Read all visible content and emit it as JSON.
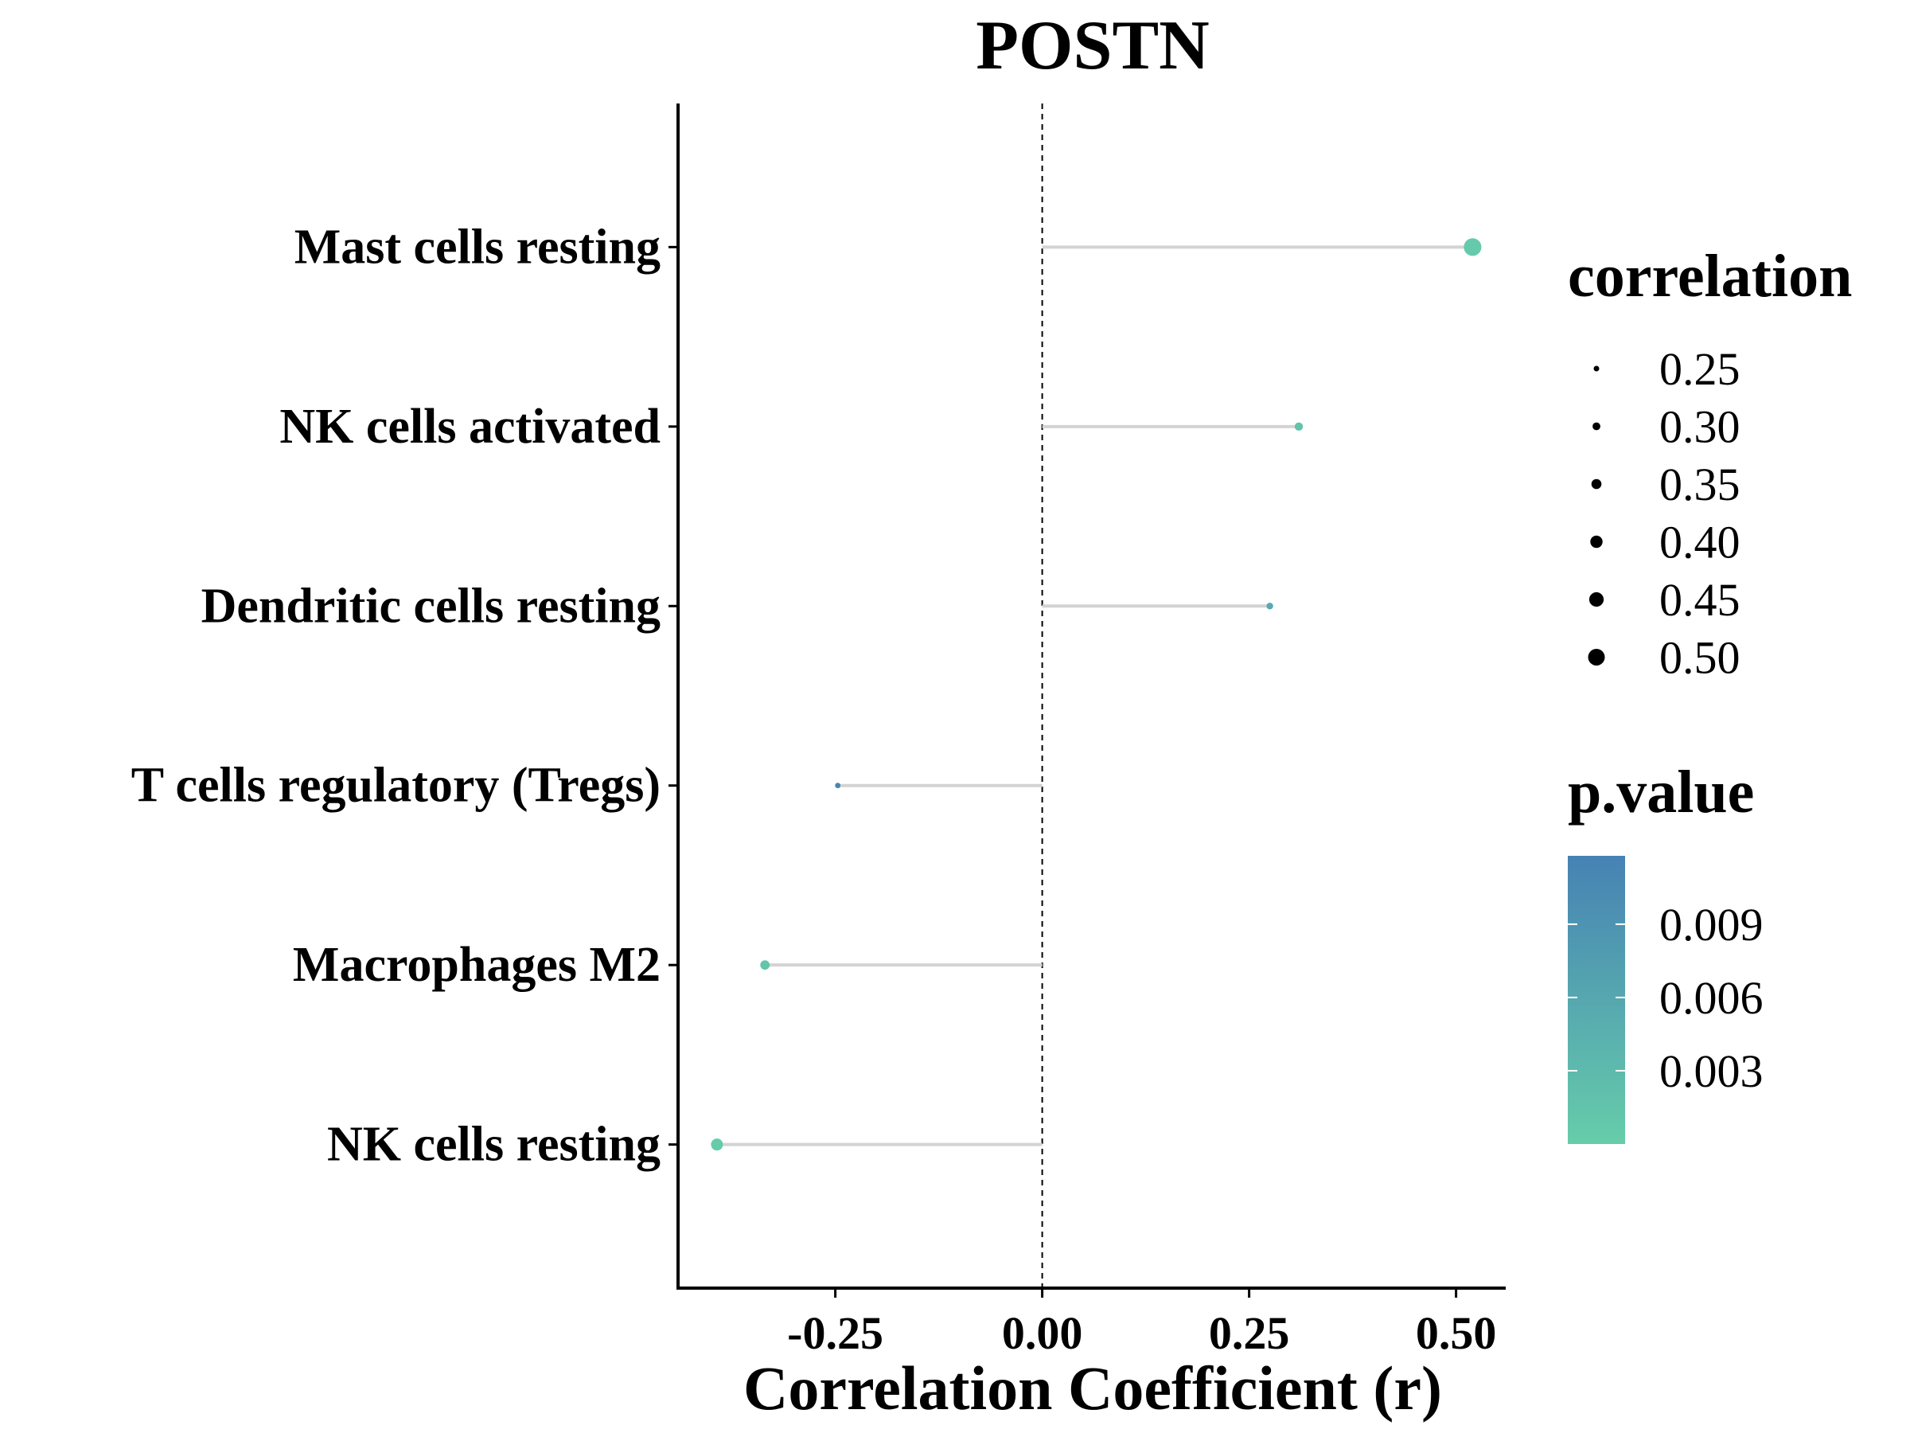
{
  "chart_data": {
    "type": "lollipop",
    "title": "POSTN",
    "xlabel": "Correlation Coefficient (r)",
    "ylabel": "",
    "xlim": [
      -0.44,
      0.56
    ],
    "x_ticks": [
      "-0.25",
      "0.00",
      "0.25",
      "0.50"
    ],
    "x_tick_values": [
      -0.25,
      0.0,
      0.25,
      0.5
    ],
    "reference_line": 0,
    "points": [
      {
        "category": "Mast cells resting",
        "r": 0.52,
        "p": 0.0005
      },
      {
        "category": "NK cells activated",
        "r": 0.31,
        "p": 0.0015
      },
      {
        "category": "Dendritic cells resting",
        "r": 0.275,
        "p": 0.0055
      },
      {
        "category": "T cells regulatory (Tregs)",
        "r": -0.247,
        "p": 0.0112
      },
      {
        "category": "Macrophages M2",
        "r": -0.335,
        "p": 0.0012
      },
      {
        "category": "NK cells resting",
        "r": -0.393,
        "p": 0.0003
      }
    ],
    "size_legend": {
      "title": "correlation",
      "values": [
        0.25,
        0.3,
        0.35,
        0.4,
        0.45,
        0.5
      ],
      "labels": [
        "0.25",
        "0.30",
        "0.35",
        "0.40",
        "0.45",
        "0.50"
      ]
    },
    "color_legend": {
      "title": "p.value",
      "range": [
        0.0,
        0.0118
      ],
      "ticks": [
        0.009,
        0.006,
        0.003
      ],
      "labels": [
        "0.009",
        "0.006",
        "0.003"
      ],
      "color_low": "#66CDAA",
      "color_high": "#4682B4"
    },
    "segment_color": "#d3d3d3"
  }
}
